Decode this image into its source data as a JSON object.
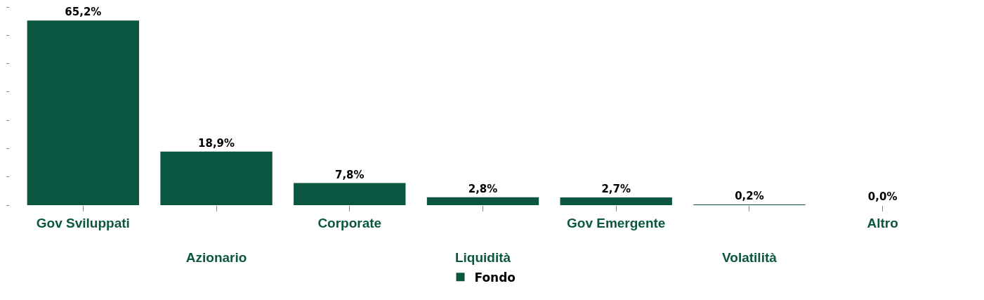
{
  "chart_data": {
    "type": "bar",
    "categories": [
      "Gov Sviluppati",
      "Azionario",
      "Corporate",
      "Liquidità",
      "Gov Emergente",
      "Volatilità",
      "Altro"
    ],
    "series": [
      {
        "name": "Fondo",
        "color": "#0b5640",
        "values": [
          65.2,
          18.9,
          7.8,
          2.8,
          2.7,
          0.2,
          0.0
        ],
        "value_labels": [
          "65,2%",
          "18,9%",
          "7,8%",
          "2,8%",
          "2,7%",
          "0,2%",
          "0,0%"
        ]
      }
    ],
    "yticks": [
      {
        "value": 0,
        "label": null
      },
      {
        "value": 10,
        "label": null
      },
      {
        "value": 20,
        "label": null
      },
      {
        "value": 30,
        "label": null
      },
      {
        "value": 40,
        "label": null
      },
      {
        "value": 50,
        "label": null
      },
      {
        "value": 60,
        "label": null
      },
      {
        "value": 70,
        "label": null
      }
    ],
    "tick_labels": "x",
    "legend": "bottom"
  }
}
